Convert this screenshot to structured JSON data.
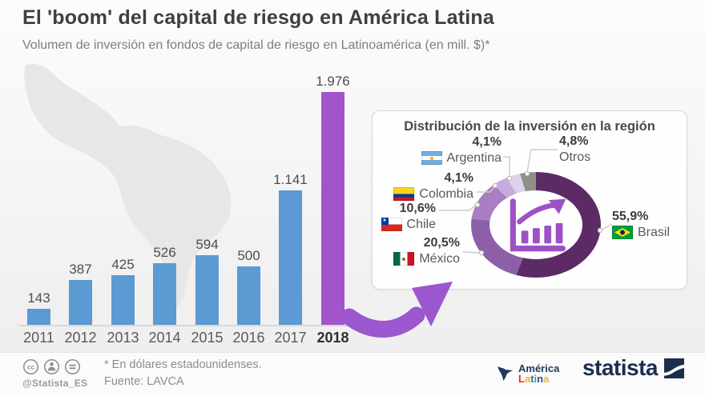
{
  "header": {
    "title": "El 'boom' del capital de riesgo en América Latina",
    "subtitle": "Volumen de inversión en fondos de capital de riesgo en Latinoamérica (en mill. $)*"
  },
  "chart_data": [
    {
      "type": "bar",
      "title": "Volumen de inversión en fondos de capital de riesgo en Latinoamérica (en mill. $)",
      "categories": [
        "2011",
        "2012",
        "2013",
        "2014",
        "2015",
        "2016",
        "2017",
        "2018"
      ],
      "values": [
        143,
        387,
        425,
        526,
        594,
        500,
        1141,
        1976
      ],
      "value_labels": [
        "143",
        "387",
        "425",
        "526",
        "594",
        "500",
        "1.141",
        "1.976"
      ],
      "ylim": [
        0,
        2100
      ],
      "grid": false,
      "bar_color": "#5b9ad2",
      "highlight_color": "#a254cb",
      "highlight_index": 7
    },
    {
      "type": "pie",
      "title": "Distribución de la inversión en la región",
      "slices": [
        {
          "label": "Brasil",
          "pct": 55.9,
          "display": "55,9%",
          "color": "#5c2b66"
        },
        {
          "label": "México",
          "pct": 20.5,
          "display": "20,5%",
          "color": "#8d5fa9"
        },
        {
          "label": "Chile",
          "pct": 10.6,
          "display": "10,6%",
          "color": "#a77fc2"
        },
        {
          "label": "Colombia",
          "pct": 4.1,
          "display": "4,1%",
          "color": "#c7abdd"
        },
        {
          "label": "Argentina",
          "pct": 4.1,
          "display": "4,1%",
          "color": "#ded2ea"
        },
        {
          "label": "Otros",
          "pct": 4.8,
          "display": "4,8%",
          "color": "#8f8f88"
        }
      ],
      "legend_position": "around-donut",
      "center_icon": "growth-chart-icon"
    }
  ],
  "footer": {
    "handle": "@Statista_ES",
    "footnote": "* En dólares estadounidenses.",
    "source": "Fuente: LAVCA",
    "cc_badges": [
      "cc-icon",
      "attribution-person-icon",
      "equals-icon"
    ],
    "america_latina": {
      "line1": "América",
      "letters": [
        {
          "ch": "L",
          "color": "#d5352c"
        },
        {
          "ch": "a",
          "color": "#f0b42f"
        },
        {
          "ch": "t",
          "color": "#2a6fb5"
        },
        {
          "ch": "i",
          "color": "#4aa649"
        },
        {
          "ch": "n",
          "color": "#2a4b9b"
        },
        {
          "ch": "a",
          "color": "#f0b42f"
        }
      ]
    },
    "statista_label": "statista"
  },
  "colors": {
    "accent_purple": "#9b57cd",
    "bar_blue": "#5b9ad2",
    "map_gray": "#e7e7e7",
    "statista_navy": "#1b2d4f"
  }
}
